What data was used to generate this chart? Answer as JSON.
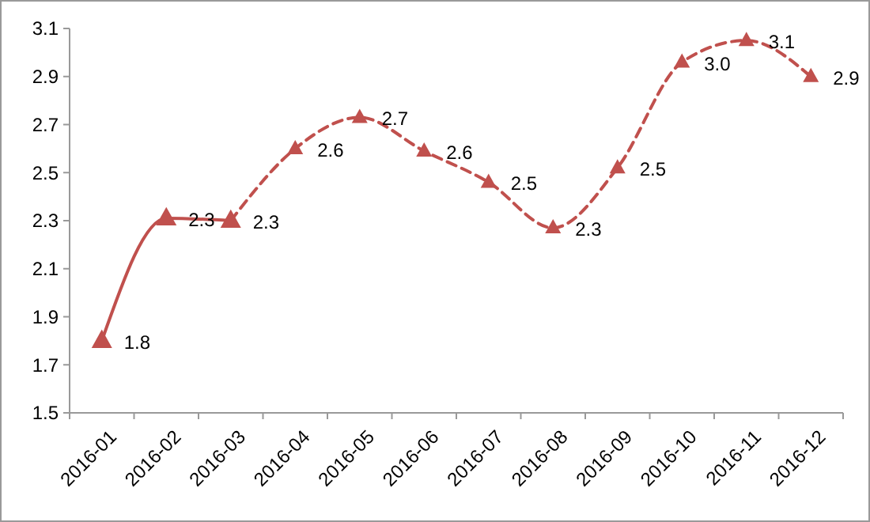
{
  "chart_data": {
    "type": "line",
    "categories": [
      "2016-01",
      "2016-02",
      "2016-03",
      "2016-04",
      "2016-05",
      "2016-06",
      "2016-07",
      "2016-08",
      "2016-09",
      "2016-10",
      "2016-11",
      "2016-12"
    ],
    "series": [
      {
        "color": "#c0504d",
        "line_style": "dashed",
        "values": [
          null,
          null,
          2.3,
          2.6,
          2.73,
          2.59,
          2.46,
          2.27,
          2.52,
          2.96,
          3.05,
          2.9
        ],
        "value_labels": [
          null,
          null,
          "2.3",
          "2.6",
          "2.7",
          "2.6",
          "2.5",
          "2.3",
          "2.5",
          "3.0",
          "3.1",
          "2.9"
        ]
      },
      {
        "color": "#c0504d",
        "line_style": "solid",
        "values": [
          1.8,
          2.31,
          2.3,
          null,
          null,
          null,
          null,
          null,
          null,
          null,
          null,
          null
        ],
        "value_labels": [
          "1.8",
          "2.3",
          null,
          null,
          null,
          null,
          null,
          null,
          null,
          null,
          null,
          null
        ]
      }
    ],
    "ylim": [
      1.5,
      3.1
    ],
    "yticks": [
      {
        "value": 1.5,
        "label": "1.5"
      },
      {
        "value": 1.7,
        "label": "1.7"
      },
      {
        "value": 1.9,
        "label": "1.9"
      },
      {
        "value": 2.1,
        "label": "2.1"
      },
      {
        "value": 2.3,
        "label": "2.3"
      },
      {
        "value": 2.5,
        "label": "2.5"
      },
      {
        "value": 2.7,
        "label": "2.7"
      },
      {
        "value": 2.9,
        "label": "2.9"
      },
      {
        "value": 3.1,
        "label": "3.1"
      }
    ],
    "marker": "triangle",
    "grid": false
  }
}
